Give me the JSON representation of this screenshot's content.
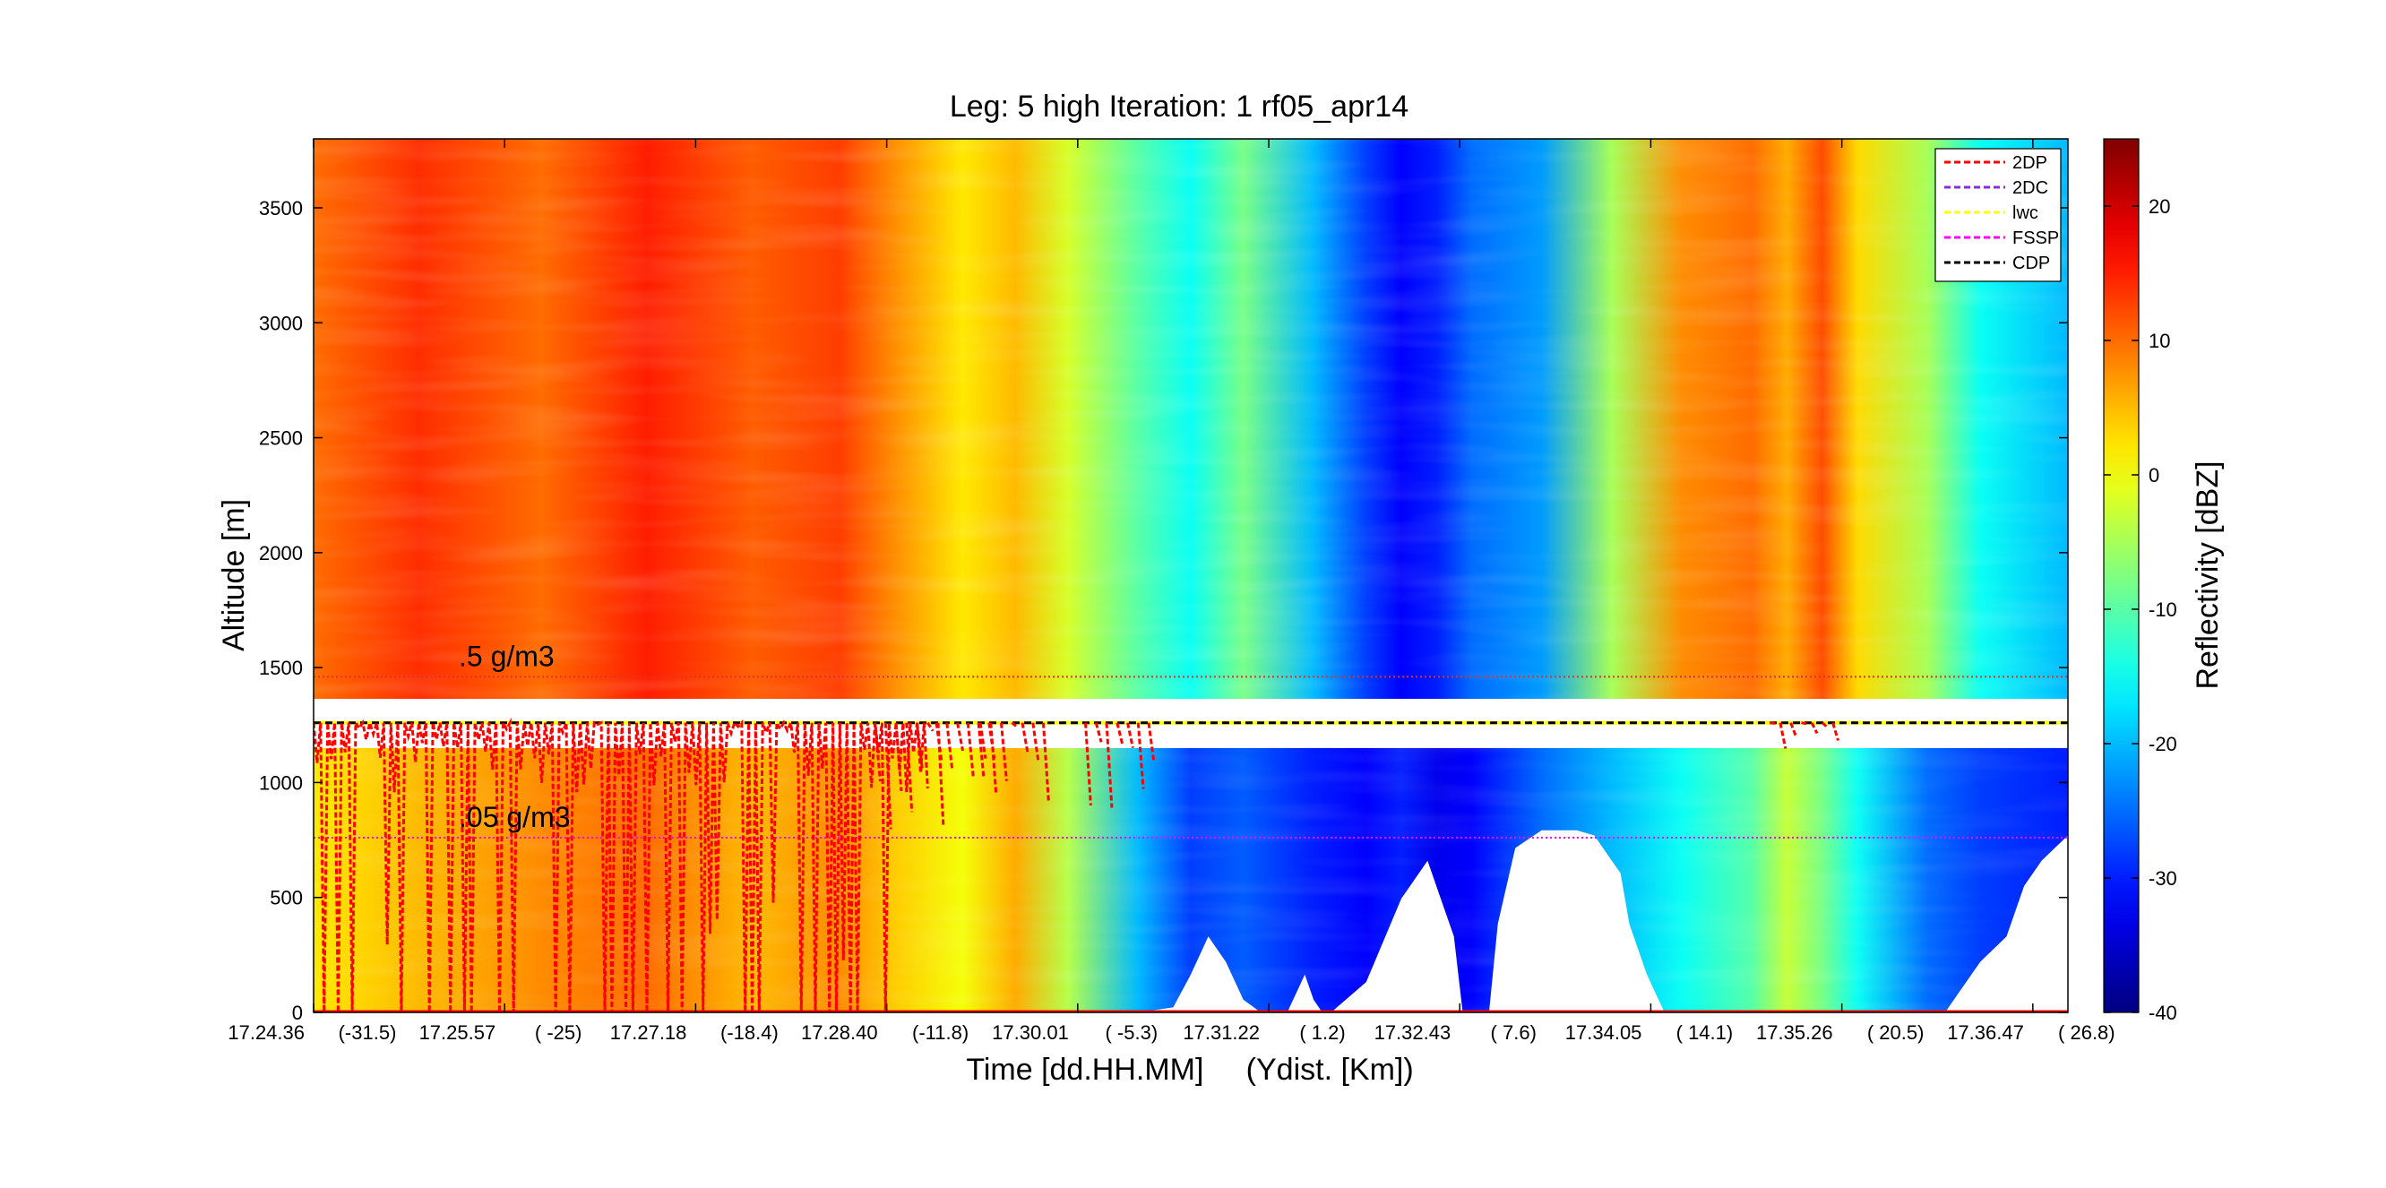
{
  "chart_data": {
    "type": "heatmap",
    "title": "Leg: 5 high Iteration: 1  rf05_apr14",
    "xlabel": "Time [dd.HH.MM]     (Ydist. [Km])",
    "ylabel": "Altitude [m]",
    "colorbar_label": "Reflectivity [dBZ]",
    "ylim": [
      0,
      3800
    ],
    "yticks": [
      0,
      500,
      1000,
      1500,
      2000,
      2500,
      3000,
      3500
    ],
    "colorbar_range": [
      -40,
      25
    ],
    "colorbar_ticks": [
      20,
      10,
      0,
      -10,
      -20,
      -30,
      -40
    ],
    "colormap": "jet",
    "xticks": [
      {
        "time": "17.24.36",
        "ydist": "(-31.5)"
      },
      {
        "time": "17.25.57",
        "ydist": "(  -25)"
      },
      {
        "time": "17.27.18",
        "ydist": "(-18.4)"
      },
      {
        "time": "17.28.40",
        "ydist": "(-11.8)"
      },
      {
        "time": "17.30.01",
        "ydist": "( -5.3)"
      },
      {
        "time": "17.31.22",
        "ydist": "(  1.2)"
      },
      {
        "time": "17.32.43",
        "ydist": "(  7.6)"
      },
      {
        "time": "17.34.05",
        "ydist": "( 14.1)"
      },
      {
        "time": "17.35.26",
        "ydist": "( 20.5)"
      },
      {
        "time": "17.36.47",
        "ydist": "( 26.8)"
      }
    ],
    "reference_lines": [
      {
        "label": ".5 g/m3",
        "altitude": 1460,
        "color": "#e03030"
      },
      {
        "label": ".05 g/m3",
        "altitude": 760,
        "color": "#ff00ff"
      }
    ],
    "legend": {
      "position": "top-right",
      "entries": [
        {
          "name": "2DP",
          "color": "#ff0000"
        },
        {
          "name": "2DC",
          "color": "#8a2be2"
        },
        {
          "name": "lwc",
          "color": "#ffff00"
        },
        {
          "name": "FSSP",
          "color": "#ff00ff"
        },
        {
          "name": "CDP",
          "color": "#000000"
        }
      ]
    },
    "flight_altitude": 1260,
    "blank_bands": [
      [
        1150,
        1190
      ],
      [
        1310,
        1360
      ]
    ],
    "reflectivity_profile": {
      "time_fraction": [
        0.0,
        0.06,
        0.13,
        0.19,
        0.25,
        0.3,
        0.33,
        0.37,
        0.4,
        0.43,
        0.47,
        0.5,
        0.53,
        0.57,
        0.6,
        0.62,
        0.64,
        0.66,
        0.7,
        0.74,
        0.78,
        0.82,
        0.84,
        0.86,
        0.88,
        0.92,
        0.95,
        1.0
      ],
      "upper_dbz": [
        10,
        14,
        10,
        15,
        11,
        13,
        8,
        2,
        5,
        -2,
        -10,
        -15,
        -8,
        -20,
        -28,
        -32,
        -30,
        -25,
        -22,
        -5,
        8,
        10,
        6,
        12,
        3,
        -5,
        -15,
        -20
      ],
      "lower_dbz": [
        2,
        5,
        8,
        10,
        5,
        8,
        4,
        0,
        6,
        -4,
        -20,
        -28,
        -26,
        -30,
        -32,
        -30,
        -33,
        -32,
        -25,
        -20,
        -15,
        -10,
        -3,
        -8,
        -15,
        -25,
        -28,
        -30
      ]
    }
  }
}
